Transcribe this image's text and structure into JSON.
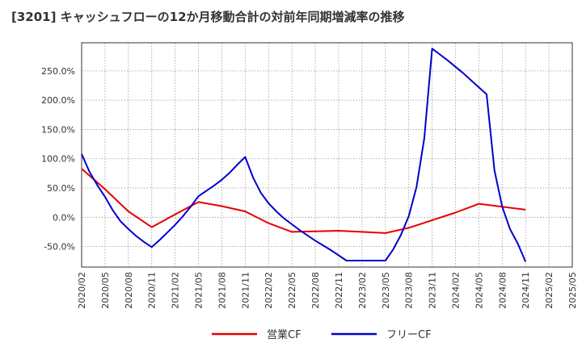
{
  "chart_data": {
    "type": "line",
    "title": "[3201]  キャッシュフローの12か月移動合計の対前年同期増減率の推移",
    "xlabel": "",
    "ylabel": "",
    "ylim": [
      -85,
      298
    ],
    "yticks": [
      -50,
      0,
      50,
      100,
      150,
      200,
      250
    ],
    "ytick_labels": [
      "-50.0%",
      "0.0%",
      "50.0%",
      "100.0%",
      "150.0%",
      "200.0%",
      "250.0%"
    ],
    "x_range": [
      "2020/02",
      "2025/05"
    ],
    "xtick_labels": [
      "2020/02",
      "2020/05",
      "2020/08",
      "2020/11",
      "2021/02",
      "2021/05",
      "2021/08",
      "2021/11",
      "2022/02",
      "2022/05",
      "2022/08",
      "2022/11",
      "2023/02",
      "2023/05",
      "2023/08",
      "2023/11",
      "2024/02",
      "2024/05",
      "2024/08",
      "2024/11",
      "2025/02",
      "2025/05"
    ],
    "grid": true,
    "legend_position": "bottom",
    "series": [
      {
        "name": "営業CF",
        "color": "#e60000",
        "x": [
          "2020/02",
          "2020/05",
          "2020/08",
          "2020/11",
          "2021/02",
          "2021/05",
          "2021/08",
          "2021/11",
          "2022/02",
          "2022/05",
          "2022/08",
          "2022/11",
          "2023/02",
          "2023/05",
          "2023/08",
          "2023/11",
          "2024/02",
          "2024/05",
          "2024/08",
          "2024/11"
        ],
        "values": [
          83,
          48,
          10,
          -17,
          5,
          26,
          19,
          10,
          -10,
          -25,
          -24,
          -23,
          -25,
          -27,
          -18,
          -5,
          8,
          23,
          18,
          13
        ]
      },
      {
        "name": "フリーCF",
        "color": "#0000cc",
        "x": [
          "2020/02",
          "2020/03",
          "2020/04",
          "2020/05",
          "2020/06",
          "2020/07",
          "2020/08",
          "2020/09",
          "2020/10",
          "2020/11",
          "2020/12",
          "2021/01",
          "2021/02",
          "2021/03",
          "2021/04",
          "2021/05",
          "2021/06",
          "2021/07",
          "2021/08",
          "2021/09",
          "2021/10",
          "2021/11",
          "2021/12",
          "2022/01",
          "2022/02",
          "2022/03",
          "2022/04",
          "2022/05",
          "2022/06",
          "2022/07",
          "2022/08",
          "2022/09",
          "2022/10",
          "2022/11",
          "2022/12",
          "2023/01",
          "2023/02",
          "2023/03",
          "2023/04",
          "2023/05",
          "2023/06",
          "2023/07",
          "2023/08",
          "2023/09",
          "2023/10",
          "2023/11",
          "2023/12",
          "2024/01",
          "2024/02",
          "2024/03",
          "2024/04",
          "2024/05",
          "2024/06",
          "2024/07",
          "2024/08",
          "2024/09",
          "2024/10",
          "2024/11"
        ],
        "values": [
          108,
          78,
          55,
          35,
          12,
          -7,
          -20,
          -32,
          -42,
          -51,
          -39,
          -26,
          -13,
          2,
          18,
          36,
          45,
          54,
          64,
          76,
          90,
          103,
          68,
          42,
          24,
          10,
          -2,
          -12,
          -22,
          -31,
          -40,
          -48,
          -56,
          -65,
          -74,
          -74,
          -74,
          -74,
          -74,
          -74,
          -55,
          -30,
          2,
          52,
          135,
          288,
          278,
          268,
          257,
          246,
          234,
          222,
          210,
          80,
          18,
          -20,
          -45,
          -76
        ]
      }
    ]
  }
}
